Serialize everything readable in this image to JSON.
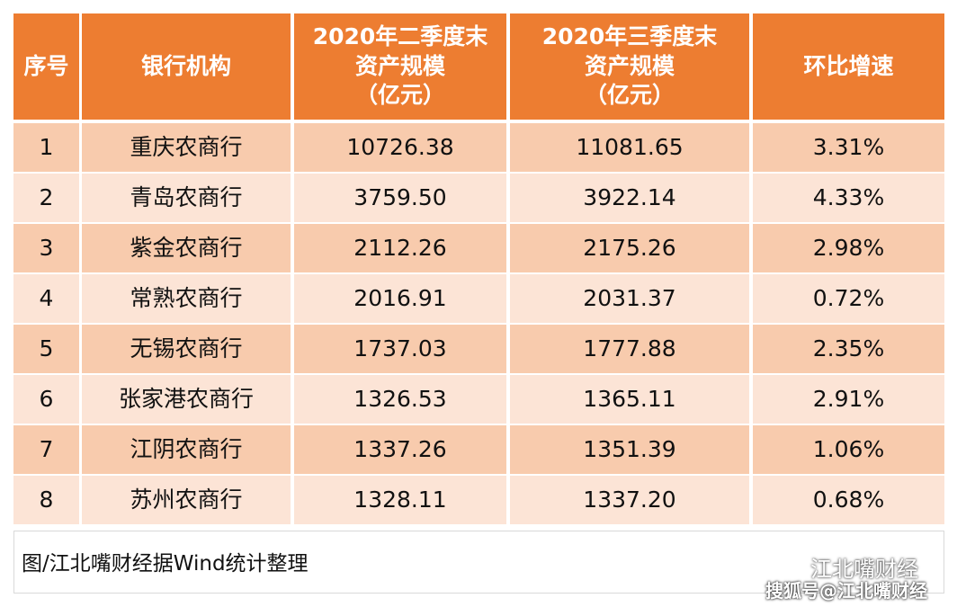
{
  "table": {
    "header": [
      [
        "序号"
      ],
      [
        "银行机构"
      ],
      [
        "2020年二季度末",
        "资产规模",
        "（亿元）"
      ],
      [
        "2020年三季度末",
        "资产规模",
        "（亿元）"
      ],
      [
        "环比增速"
      ]
    ],
    "rows": [
      [
        "1",
        "重庆农商行",
        "10726.38",
        "11081.65",
        "3.31%"
      ],
      [
        "2",
        "青岛农商行",
        "3759.50",
        "3922.14",
        "4.33%"
      ],
      [
        "3",
        "紫金农商行",
        "2112.26",
        "2175.26",
        "2.98%"
      ],
      [
        "4",
        "常熟农商行",
        "2016.91",
        "2031.37",
        "0.72%"
      ],
      [
        "5",
        "无锡农商行",
        "1737.03",
        "1777.88",
        "2.35%"
      ],
      [
        "6",
        "张家港农商行",
        "1326.53",
        "1365.11",
        "2.91%"
      ],
      [
        "7",
        "江阴农商行",
        "1337.26",
        "1351.39",
        "1.06%"
      ],
      [
        "8",
        "苏州农商行",
        "1328.11",
        "1337.20",
        "0.68%"
      ]
    ]
  },
  "footer": {
    "source": "图/江北嘴财经据Wind统计整理",
    "watermark": "江北嘴财经",
    "sohu": "搜狐号@江北嘴财经"
  }
}
